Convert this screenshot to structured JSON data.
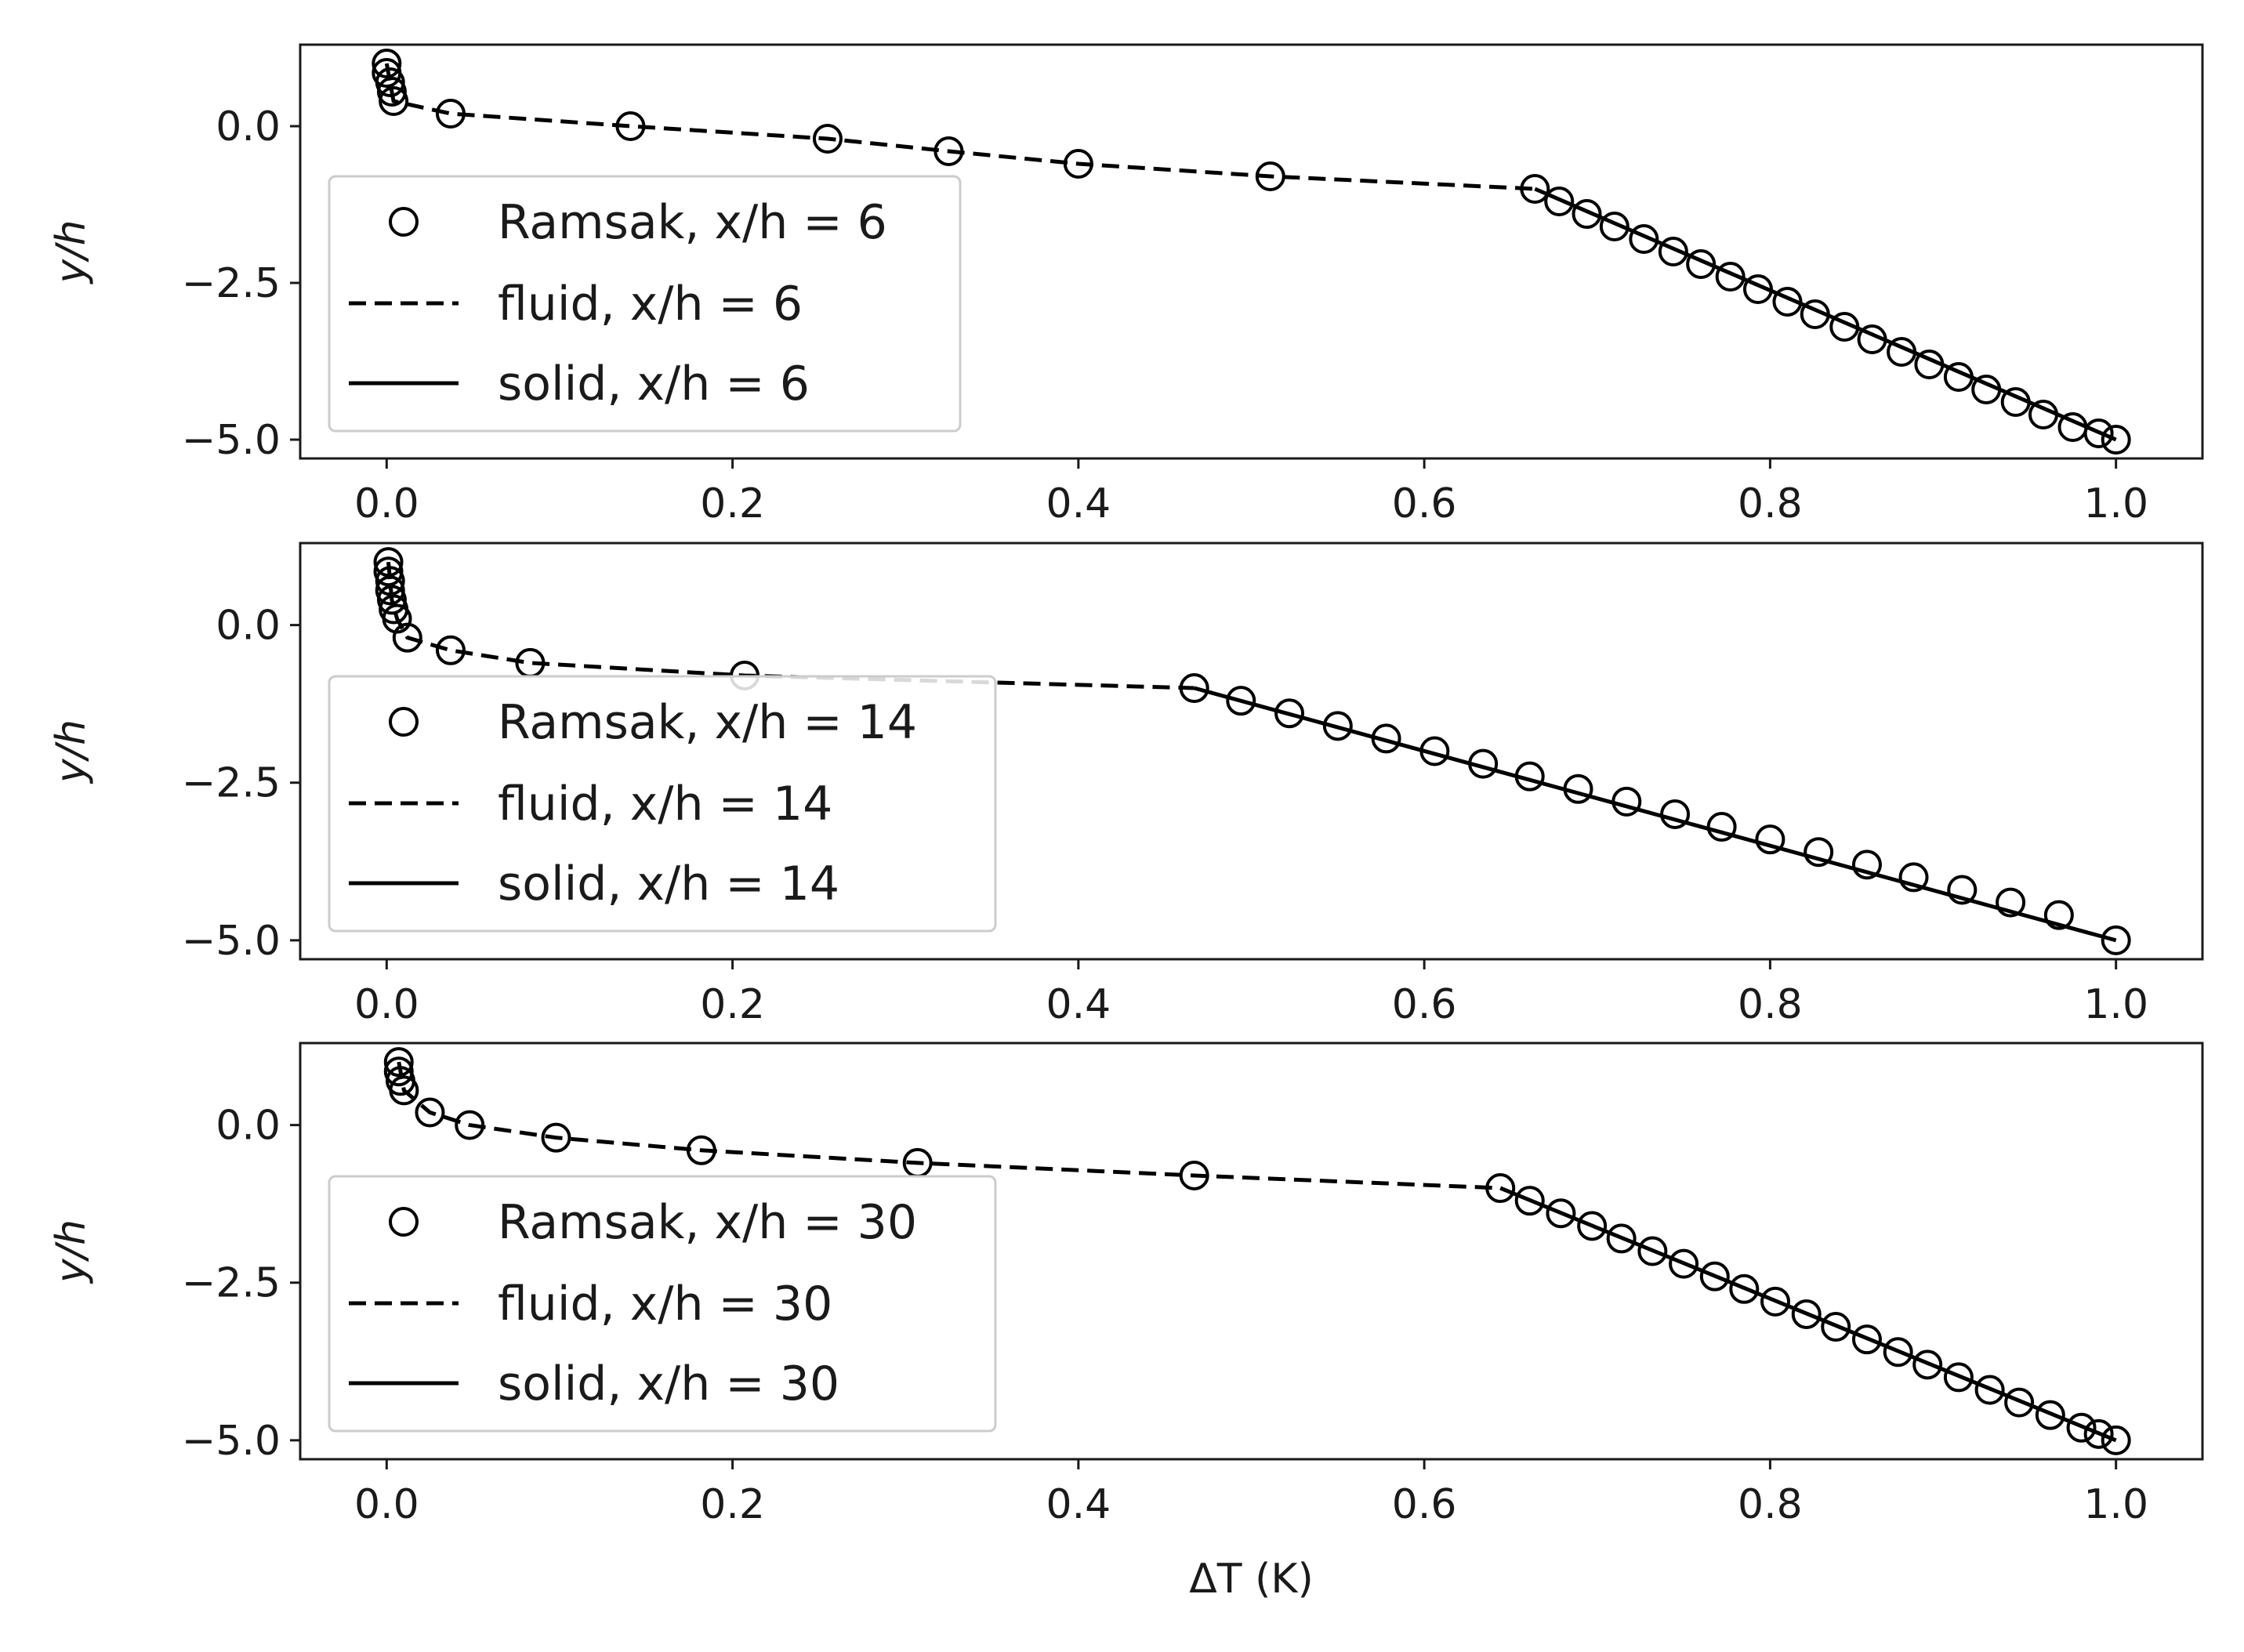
{
  "chart_data": [
    {
      "type": "line",
      "ylabel": "y/h",
      "xlabel": "",
      "xlim": [
        -0.05,
        1.05
      ],
      "ylim": [
        -5.3,
        1.3
      ],
      "x_ticks": [
        "0.0",
        "0.2",
        "0.4",
        "0.6",
        "0.8",
        "1.0"
      ],
      "x_tick_values": [
        0.0,
        0.2,
        0.4,
        0.6,
        0.8,
        1.0
      ],
      "y_ticks": [
        "0.0",
        "−2.5",
        "−5.0"
      ],
      "y_tick_values": [
        0.0,
        -2.5,
        -5.0
      ],
      "legend_position": "center-left",
      "legend": [
        "Ramsak, x/h = 6",
        "fluid, x/h = 6",
        "solid, x/h = 6"
      ],
      "series": [
        {
          "name": "Ramsak, x/h = 6",
          "style": "markers",
          "x": [
            0.0,
            0.0,
            0.002,
            0.003,
            0.004,
            0.037,
            0.141,
            0.255,
            0.325,
            0.4,
            0.511,
            0.664,
            0.678,
            0.694,
            0.71,
            0.727,
            0.744,
            0.76,
            0.777,
            0.793,
            0.81,
            0.826,
            0.843,
            0.859,
            0.876,
            0.892,
            0.909,
            0.925,
            0.942,
            0.958,
            0.975,
            0.99,
            1.0
          ],
          "y": [
            1.0,
            0.85,
            0.7,
            0.55,
            0.4,
            0.2,
            0.0,
            -0.2,
            -0.4,
            -0.6,
            -0.8,
            -1.0,
            -1.2,
            -1.4,
            -1.6,
            -1.8,
            -2.0,
            -2.2,
            -2.4,
            -2.6,
            -2.8,
            -3.0,
            -3.2,
            -3.4,
            -3.6,
            -3.8,
            -4.0,
            -4.2,
            -4.4,
            -4.6,
            -4.8,
            -4.9,
            -5.0
          ]
        },
        {
          "name": "fluid, x/h = 6",
          "style": "dashed",
          "x": [
            0.0,
            0.002,
            0.004,
            0.037,
            0.141,
            0.255,
            0.325,
            0.4,
            0.511,
            0.664
          ],
          "y": [
            1.0,
            0.7,
            0.4,
            0.2,
            0.0,
            -0.2,
            -0.4,
            -0.6,
            -0.8,
            -1.0
          ]
        },
        {
          "name": "solid, x/h = 6",
          "style": "solid",
          "x": [
            0.664,
            1.0
          ],
          "y": [
            -1.0,
            -5.0
          ]
        }
      ]
    },
    {
      "type": "line",
      "ylabel": "y/h",
      "xlabel": "",
      "xlim": [
        -0.05,
        1.05
      ],
      "ylim": [
        -5.3,
        1.3
      ],
      "x_ticks": [
        "0.0",
        "0.2",
        "0.4",
        "0.6",
        "0.8",
        "1.0"
      ],
      "x_tick_values": [
        0.0,
        0.2,
        0.4,
        0.6,
        0.8,
        1.0
      ],
      "y_ticks": [
        "0.0",
        "−2.5",
        "−5.0"
      ],
      "y_tick_values": [
        0.0,
        -2.5,
        -5.0
      ],
      "legend_position": "center-left",
      "legend": [
        "Ramsak, x/h = 14",
        "fluid, x/h = 14",
        "solid, x/h = 14"
      ],
      "series": [
        {
          "name": "Ramsak, x/h = 14",
          "style": "markers",
          "x": [
            0.001,
            0.001,
            0.002,
            0.002,
            0.003,
            0.004,
            0.006,
            0.012,
            0.037,
            0.083,
            0.207,
            0.467,
            0.494,
            0.522,
            0.55,
            0.578,
            0.606,
            0.634,
            0.661,
            0.689,
            0.717,
            0.745,
            0.772,
            0.8,
            0.828,
            0.856,
            0.883,
            0.911,
            0.939,
            0.967,
            1.0
          ],
          "y": [
            1.0,
            0.85,
            0.7,
            0.55,
            0.4,
            0.25,
            0.1,
            -0.2,
            -0.4,
            -0.6,
            -0.8,
            -1.0,
            -1.2,
            -1.4,
            -1.6,
            -1.8,
            -2.0,
            -2.2,
            -2.4,
            -2.6,
            -2.8,
            -3.0,
            -3.2,
            -3.4,
            -3.6,
            -3.8,
            -4.0,
            -4.2,
            -4.4,
            -4.6,
            -5.0
          ]
        },
        {
          "name": "fluid, x/h = 14",
          "style": "dashed",
          "x": [
            0.001,
            0.003,
            0.006,
            0.012,
            0.037,
            0.083,
            0.207,
            0.467
          ],
          "y": [
            1.0,
            0.4,
            0.1,
            -0.2,
            -0.4,
            -0.6,
            -0.8,
            -1.0
          ]
        },
        {
          "name": "solid, x/h = 14",
          "style": "solid",
          "x": [
            0.467,
            1.0
          ],
          "y": [
            -1.0,
            -5.0
          ]
        }
      ]
    },
    {
      "type": "line",
      "ylabel": "y/h",
      "xlabel": "ΔT (K)",
      "xlim": [
        -0.05,
        1.05
      ],
      "ylim": [
        -5.3,
        1.3
      ],
      "x_ticks": [
        "0.0",
        "0.2",
        "0.4",
        "0.6",
        "0.8",
        "1.0"
      ],
      "x_tick_values": [
        0.0,
        0.2,
        0.4,
        0.6,
        0.8,
        1.0
      ],
      "y_ticks": [
        "0.0",
        "−2.5",
        "−5.0"
      ],
      "y_tick_values": [
        0.0,
        -2.5,
        -5.0
      ],
      "legend_position": "center-left",
      "legend": [
        "Ramsak, x/h = 30",
        "fluid, x/h = 30",
        "solid, x/h = 30"
      ],
      "series": [
        {
          "name": "Ramsak, x/h = 30",
          "style": "markers",
          "x": [
            0.007,
            0.007,
            0.008,
            0.01,
            0.025,
            0.048,
            0.098,
            0.182,
            0.307,
            0.467,
            0.644,
            0.661,
            0.679,
            0.697,
            0.714,
            0.732,
            0.75,
            0.768,
            0.785,
            0.803,
            0.821,
            0.838,
            0.856,
            0.874,
            0.891,
            0.909,
            0.927,
            0.944,
            0.962,
            0.98,
            0.99,
            1.0
          ],
          "y": [
            1.0,
            0.85,
            0.7,
            0.55,
            0.2,
            0.0,
            -0.2,
            -0.4,
            -0.6,
            -0.8,
            -1.0,
            -1.2,
            -1.4,
            -1.6,
            -1.8,
            -2.0,
            -2.2,
            -2.4,
            -2.6,
            -2.8,
            -3.0,
            -3.2,
            -3.4,
            -3.6,
            -3.8,
            -4.0,
            -4.2,
            -4.4,
            -4.6,
            -4.8,
            -4.9,
            -5.0
          ]
        },
        {
          "name": "fluid, x/h = 30",
          "style": "dashed",
          "x": [
            0.007,
            0.01,
            0.025,
            0.048,
            0.098,
            0.182,
            0.307,
            0.467,
            0.644
          ],
          "y": [
            1.0,
            0.55,
            0.2,
            0.0,
            -0.2,
            -0.4,
            -0.6,
            -0.8,
            -1.0
          ]
        },
        {
          "name": "solid, x/h = 30",
          "style": "solid",
          "x": [
            0.644,
            1.0
          ],
          "y": [
            -1.0,
            -5.0
          ]
        }
      ]
    }
  ]
}
